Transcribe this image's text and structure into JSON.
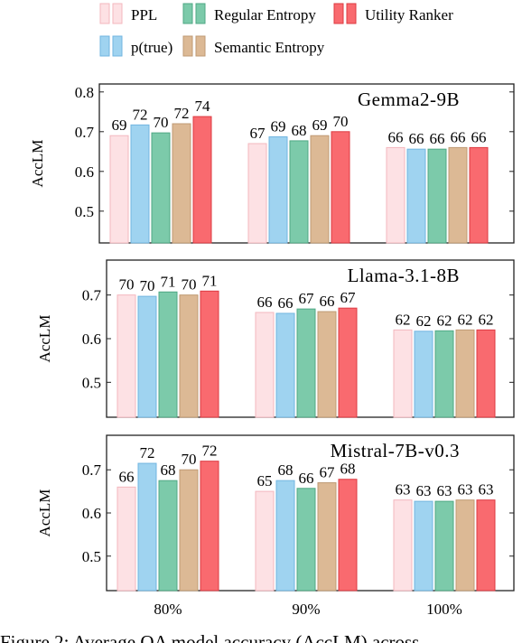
{
  "chart_data": {
    "type": "bar",
    "categories": [
      "80%",
      "90%",
      "100%"
    ],
    "ylabel": "AccLM",
    "series_styles": [
      {
        "name": "PPL",
        "fill": "#fde1e4",
        "stroke": "#f3b7be"
      },
      {
        "name": "p(true)",
        "fill": "#9fd3f0",
        "stroke": "#72b6e0"
      },
      {
        "name": "Regular Entropy",
        "fill": "#7ccaaa",
        "stroke": "#4fa884"
      },
      {
        "name": "Semantic Entropy",
        "fill": "#dcb995",
        "stroke": "#bf9a74"
      },
      {
        "name": "Utility Ranker",
        "fill": "#f96a6f",
        "stroke": "#dd3b42"
      }
    ],
    "legend": {
      "placement": "top",
      "rows": [
        [
          "PPL",
          "Regular Entropy",
          "Utility Ranker"
        ],
        [
          "p(true)",
          "Semantic Entropy"
        ]
      ]
    },
    "panels": [
      {
        "title": "Gemma2-9B",
        "ylim": [
          0.42,
          0.82
        ],
        "yticks": [
          0.5,
          0.6,
          0.7,
          0.8
        ],
        "series": [
          {
            "name": "PPL",
            "values": [
              0.69,
              0.67,
              0.66
            ],
            "labels": [
              "69",
              "67",
              "66"
            ]
          },
          {
            "name": "p(true)",
            "values": [
              0.717,
              0.687,
              0.656
            ],
            "labels": [
              "72",
              "69",
              "66"
            ]
          },
          {
            "name": "Regular Entropy",
            "values": [
              0.697,
              0.677,
              0.656
            ],
            "labels": [
              "70",
              "68",
              "66"
            ]
          },
          {
            "name": "Semantic Entropy",
            "values": [
              0.72,
              0.69,
              0.66
            ],
            "labels": [
              "72",
              "69",
              "66"
            ]
          },
          {
            "name": "Utility Ranker",
            "values": [
              0.738,
              0.7,
              0.66
            ],
            "labels": [
              "74",
              "70",
              "66"
            ]
          }
        ]
      },
      {
        "title": "Llama-3.1-8B",
        "ylim": [
          0.42,
          0.78
        ],
        "yticks": [
          0.5,
          0.6,
          0.7
        ],
        "series": [
          {
            "name": "PPL",
            "values": [
              0.7,
              0.66,
              0.62
            ],
            "labels": [
              "70",
              "66",
              "62"
            ]
          },
          {
            "name": "p(true)",
            "values": [
              0.697,
              0.658,
              0.617
            ],
            "labels": [
              "70",
              "66",
              "62"
            ]
          },
          {
            "name": "Regular Entropy",
            "values": [
              0.707,
              0.668,
              0.618
            ],
            "labels": [
              "71",
              "67",
              "62"
            ]
          },
          {
            "name": "Semantic Entropy",
            "values": [
              0.7,
              0.662,
              0.62
            ],
            "labels": [
              "70",
              "66",
              "62"
            ]
          },
          {
            "name": "Utility Ranker",
            "values": [
              0.709,
              0.67,
              0.62
            ],
            "labels": [
              "71",
              "67",
              "62"
            ]
          }
        ]
      },
      {
        "title": "Mistral-7B-v0.3",
        "ylim": [
          0.42,
          0.78
        ],
        "yticks": [
          0.5,
          0.6,
          0.7
        ],
        "series": [
          {
            "name": "PPL",
            "values": [
              0.66,
              0.65,
              0.63
            ],
            "labels": [
              "66",
              "65",
              "63"
            ]
          },
          {
            "name": "p(true)",
            "values": [
              0.715,
              0.675,
              0.627
            ],
            "labels": [
              "72",
              "68",
              "63"
            ]
          },
          {
            "name": "Regular Entropy",
            "values": [
              0.675,
              0.657,
              0.627
            ],
            "labels": [
              "68",
              "66",
              "63"
            ]
          },
          {
            "name": "Semantic Entropy",
            "values": [
              0.7,
              0.67,
              0.63
            ],
            "labels": [
              "70",
              "67",
              "63"
            ]
          },
          {
            "name": "Utility Ranker",
            "values": [
              0.72,
              0.678,
              0.63
            ],
            "labels": [
              "72",
              "68",
              "63"
            ]
          }
        ]
      }
    ]
  },
  "caption": "Figure 2: Average QA model accuracy (AccLM) across"
}
